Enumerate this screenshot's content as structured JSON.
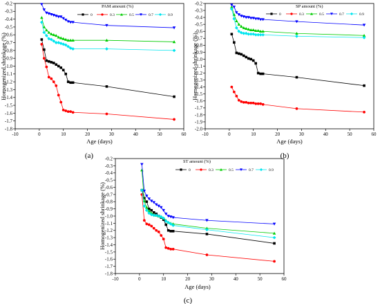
{
  "figure": {
    "panel_labels": [
      "(a)",
      "(b)",
      "(c)"
    ]
  },
  "chart_data": [
    {
      "type": "line",
      "panel": "(a)",
      "xlabel": "Age (days)",
      "ylabel": "Homogenized shrinkage (%)",
      "legend_title": "PAM amount (%)",
      "legend_position": "top",
      "xlim": [
        -10,
        60
      ],
      "ylim": [
        -1.8,
        -0.2
      ],
      "xticks": [
        "-10",
        "0",
        "10",
        "20",
        "30",
        "40",
        "50",
        "60"
      ],
      "yticks": [
        "-0.2",
        "-0.3",
        "-0.4",
        "-0.5",
        "-0.6",
        "-0.7",
        "-0.8",
        "-0.9",
        "-1.0",
        "-1.1",
        "-1.2",
        "-1.3",
        "-1.4",
        "-1.5",
        "-1.6",
        "-1.7",
        "-1.8"
      ],
      "x": [
        1,
        2,
        3,
        4,
        5,
        6,
        7,
        8,
        9,
        10,
        11,
        12,
        13,
        14,
        28,
        56
      ],
      "series": [
        {
          "name": "0",
          "color": "#000000",
          "marker": "square",
          "values": [
            -0.66,
            -0.79,
            -0.93,
            -0.94,
            -0.95,
            -0.96,
            -0.98,
            -1.0,
            -1.02,
            -1.05,
            -1.1,
            -1.2,
            -1.21,
            -1.21,
            -1.26,
            -1.39
          ]
        },
        {
          "name": "0.3",
          "color": "#ff0000",
          "marker": "circle",
          "values": [
            -0.72,
            -0.9,
            -1.01,
            -1.14,
            -1.16,
            -1.2,
            -1.25,
            -1.37,
            -1.46,
            -1.56,
            -1.57,
            -1.58,
            -1.58,
            -1.59,
            -1.61,
            -1.68
          ]
        },
        {
          "name": "0.5",
          "color": "#00cc00",
          "marker": "triangle-up",
          "values": [
            -0.38,
            -0.5,
            -0.54,
            -0.57,
            -0.59,
            -0.6,
            -0.61,
            -0.63,
            -0.64,
            -0.65,
            -0.66,
            -0.67,
            -0.67,
            -0.67,
            -0.67,
            -0.69
          ]
        },
        {
          "name": "0.7",
          "color": "#0000ff",
          "marker": "triangle-down",
          "values": [
            -0.21,
            -0.28,
            -0.32,
            -0.33,
            -0.34,
            -0.35,
            -0.36,
            -0.37,
            -0.37,
            -0.39,
            -0.41,
            -0.43,
            -0.44,
            -0.44,
            -0.48,
            -0.51
          ]
        },
        {
          "name": "0.9",
          "color": "#00e5ee",
          "marker": "diamond",
          "values": [
            -0.44,
            -0.57,
            -0.61,
            -0.65,
            -0.66,
            -0.68,
            -0.7,
            -0.7,
            -0.71,
            -0.72,
            -0.73,
            -0.75,
            -0.77,
            -0.78,
            -0.78,
            -0.8
          ]
        }
      ]
    },
    {
      "type": "line",
      "panel": "(b)",
      "xlabel": "Age (days)",
      "ylabel": "Homogenized shrinkage (%)",
      "legend_title": "SP amount (%)",
      "legend_position": "top",
      "xlim": [
        -10,
        60
      ],
      "ylim": [
        -2.0,
        -0.2
      ],
      "xticks": [
        "-10",
        "0",
        "10",
        "20",
        "30",
        "40",
        "50",
        "60"
      ],
      "yticks": [
        "-0.2",
        "-0.3",
        "-0.4",
        "-0.5",
        "-0.6",
        "-0.7",
        "-0.8",
        "-0.9",
        "-1.0",
        "-1.1",
        "-1.2",
        "-1.3",
        "-1.4",
        "-1.5",
        "-1.6",
        "-1.7",
        "-1.8",
        "-1.9",
        "-2.0"
      ],
      "x": [
        1,
        2,
        3,
        4,
        5,
        6,
        7,
        8,
        9,
        10,
        11,
        12,
        13,
        14,
        28,
        56
      ],
      "series": [
        {
          "name": "0",
          "color": "#000000",
          "marker": "square",
          "values": [
            -0.64,
            -0.76,
            -0.91,
            -0.92,
            -0.93,
            -0.95,
            -0.97,
            -0.99,
            -1.0,
            -1.02,
            -1.06,
            -1.2,
            -1.21,
            -1.21,
            -1.26,
            -1.38
          ]
        },
        {
          "name": "0.3",
          "color": "#ff0000",
          "marker": "circle",
          "values": [
            -1.4,
            -1.47,
            -1.53,
            -1.59,
            -1.61,
            -1.62,
            -1.62,
            -1.63,
            -1.63,
            -1.63,
            -1.64,
            -1.64,
            -1.64,
            -1.65,
            -1.71,
            -1.76
          ]
        },
        {
          "name": "0.5",
          "color": "#00cc00",
          "marker": "triangle-up",
          "values": [
            -0.25,
            -0.36,
            -0.45,
            -0.5,
            -0.53,
            -0.55,
            -0.56,
            -0.57,
            -0.58,
            -0.58,
            -0.59,
            -0.59,
            -0.6,
            -0.6,
            -0.63,
            -0.66
          ]
        },
        {
          "name": "0.7",
          "color": "#0000ff",
          "marker": "triangle-down",
          "values": [
            -0.22,
            -0.25,
            -0.33,
            -0.36,
            -0.38,
            -0.39,
            -0.4,
            -0.4,
            -0.41,
            -0.41,
            -0.42,
            -0.42,
            -0.43,
            -0.43,
            -0.46,
            -0.51
          ]
        },
        {
          "name": "0.9",
          "color": "#00e5ee",
          "marker": "diamond",
          "values": [
            -0.28,
            -0.42,
            -0.55,
            -0.6,
            -0.62,
            -0.63,
            -0.63,
            -0.64,
            -0.64,
            -0.64,
            -0.65,
            -0.65,
            -0.65,
            -0.65,
            -0.67,
            -0.69
          ]
        }
      ]
    },
    {
      "type": "line",
      "panel": "(c)",
      "xlabel": "Age (days)",
      "ylabel": "Homogenized shrinkage (%)",
      "legend_title": "ST amount (%)",
      "legend_position": "top",
      "xlim": [
        -10,
        60
      ],
      "ylim": [
        -1.8,
        -0.2
      ],
      "xticks": [
        "-10",
        "0",
        "10",
        "20",
        "30",
        "40",
        "50",
        "60"
      ],
      "yticks": [
        "-0.2",
        "-0.3",
        "-0.4",
        "-0.5",
        "-0.6",
        "-0.7",
        "-0.8",
        "-0.9",
        "-1.0",
        "-1.1",
        "-1.2",
        "-1.3",
        "-1.4",
        "-1.5",
        "-1.6",
        "-1.7",
        "-1.8"
      ],
      "x": [
        1,
        2,
        3,
        4,
        5,
        6,
        7,
        8,
        9,
        10,
        11,
        12,
        13,
        14,
        28,
        56
      ],
      "series": [
        {
          "name": "0",
          "color": "#000000",
          "marker": "square",
          "values": [
            -0.64,
            -0.75,
            -0.8,
            -0.9,
            -0.92,
            -0.95,
            -0.97,
            -1.0,
            -1.02,
            -1.05,
            -1.12,
            -1.2,
            -1.21,
            -1.21,
            -1.25,
            -1.38
          ]
        },
        {
          "name": "0.3",
          "color": "#ff0000",
          "marker": "circle",
          "values": [
            -0.7,
            -1.06,
            -1.11,
            -1.12,
            -1.14,
            -1.17,
            -1.2,
            -1.22,
            -1.27,
            -1.32,
            -1.44,
            -1.45,
            -1.46,
            -1.46,
            -1.54,
            -1.63
          ]
        },
        {
          "name": "0.5",
          "color": "#00cc00",
          "marker": "triangle-up",
          "values": [
            -0.36,
            -0.79,
            -0.88,
            -0.93,
            -0.96,
            -0.98,
            -0.99,
            -1.0,
            -1.01,
            -1.03,
            -1.06,
            -1.09,
            -1.1,
            -1.11,
            -1.17,
            -1.24
          ]
        },
        {
          "name": "0.7",
          "color": "#0000ff",
          "marker": "triangle-down",
          "values": [
            -0.28,
            -0.65,
            -0.72,
            -0.76,
            -0.79,
            -0.81,
            -0.84,
            -0.86,
            -0.88,
            -0.92,
            -0.97,
            -1.0,
            -1.01,
            -1.02,
            -1.06,
            -1.11
          ]
        },
        {
          "name": "0.9",
          "color": "#00e5ee",
          "marker": "diamond",
          "values": [
            -0.64,
            -0.86,
            -0.92,
            -0.96,
            -0.98,
            -0.99,
            -0.99,
            -1.0,
            -1.01,
            -1.03,
            -1.07,
            -1.09,
            -1.11,
            -1.13,
            -1.19,
            -1.3
          ]
        }
      ]
    }
  ]
}
